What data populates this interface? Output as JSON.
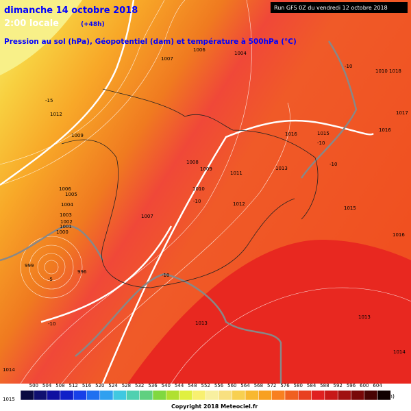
{
  "header": {
    "title": "dimanche 14 octobre 2018",
    "time": "2:00 locale",
    "offset": "(+48h)",
    "subtitle": "Pression au sol (hPa), Géopotentiel (dam) et température à 500hPa (°C)",
    "run": "Run GFS 0Z du vendredi 12 octobre 2018"
  },
  "map": {
    "labels": [
      "1007",
      "1006",
      "1004",
      "-10",
      "1010 1018",
      "-15",
      "1012",
      "1017",
      "1016",
      "1009",
      "1016",
      "1015",
      "-10",
      "1008",
      "1009",
      "1011",
      "1013",
      "-10",
      "1006",
      "1005",
      "1004",
      "1010",
      "-10",
      "1012",
      "1015",
      "1003",
      "1002",
      "1001",
      "1000",
      "1007",
      "1016",
      "999",
      "996",
      "-10",
      "-5",
      "-10",
      "1013",
      "1013",
      "1014",
      "1014",
      "1015"
    ]
  },
  "legend": {
    "labels": [
      "500",
      "504",
      "508",
      "512",
      "516",
      "520",
      "524",
      "528",
      "532",
      "536",
      "540",
      "544",
      "548",
      "552",
      "556",
      "560",
      "564",
      "568",
      "572",
      "576",
      "580",
      "584",
      "588",
      "592",
      "596",
      "600",
      "604"
    ],
    "colors": [
      "#0a0a40",
      "#101070",
      "#1010a0",
      "#1020c8",
      "#1840e8",
      "#2070f0",
      "#30a0f0",
      "#40c8e0",
      "#50d0b0",
      "#60d080",
      "#80d840",
      "#b0e030",
      "#e0f040",
      "#f8f070",
      "#f8f0a0",
      "#f8e080",
      "#f8d050",
      "#f8b830",
      "#f8a020",
      "#f88020",
      "#f06020",
      "#e84020",
      "#e02020",
      "#c81818",
      "#a01010",
      "#780808",
      "#480404",
      "#100000"
    ],
    "unit": "(dam)",
    "copyright": "Copyright 2018 Meteociel.fr"
  }
}
